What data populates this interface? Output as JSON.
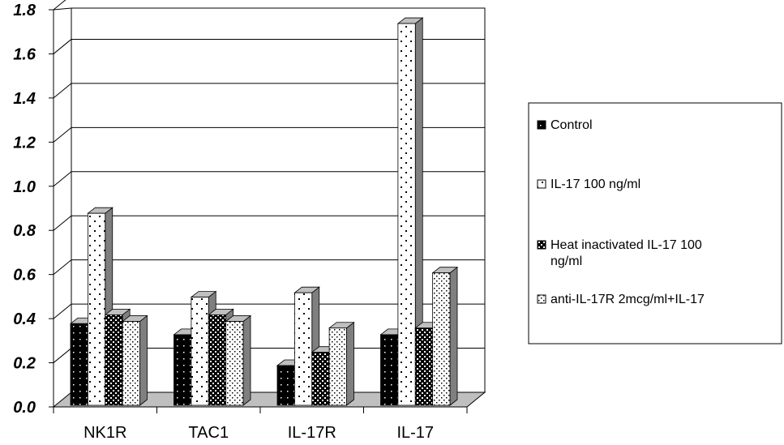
{
  "chart_data": {
    "type": "bar",
    "style": "3d-clustered-column",
    "categories": [
      "NK1R",
      "TAC1",
      "IL-17R",
      "IL-17"
    ],
    "series": [
      {
        "name": "Control",
        "pattern": "black-with-white-dots",
        "values": [
          0.37,
          0.32,
          0.18,
          0.32
        ]
      },
      {
        "name": "IL-17 100 ng/ml",
        "pattern": "white-with-sparse-dots",
        "values": [
          0.87,
          0.49,
          0.51,
          1.73
        ]
      },
      {
        "name": "Heat inactivated IL-17 100 ng/ml",
        "pattern": "black-with-dense-white-dots",
        "values": [
          0.41,
          0.41,
          0.24,
          0.35
        ]
      },
      {
        "name": "anti-IL-17R 2mcg/ml+IL-17",
        "pattern": "white-with-dense-dots",
        "values": [
          0.38,
          0.38,
          0.35,
          0.6
        ]
      }
    ],
    "yticks": [
      "0.0",
      "0.2",
      "0.4",
      "0.6",
      "0.8",
      "1.0",
      "1.2",
      "1.4",
      "1.6",
      "1.8"
    ],
    "ylim": [
      0,
      1.8
    ],
    "title": "",
    "xlabel": "",
    "ylabel": "",
    "grid": true,
    "legend_position": "right",
    "colors": {
      "wall_background": "#ffffff",
      "floor": "#bfbfbf",
      "side_face": "#7f7f7f",
      "dark_face": "#000000",
      "light_face": "#ffffff"
    }
  }
}
